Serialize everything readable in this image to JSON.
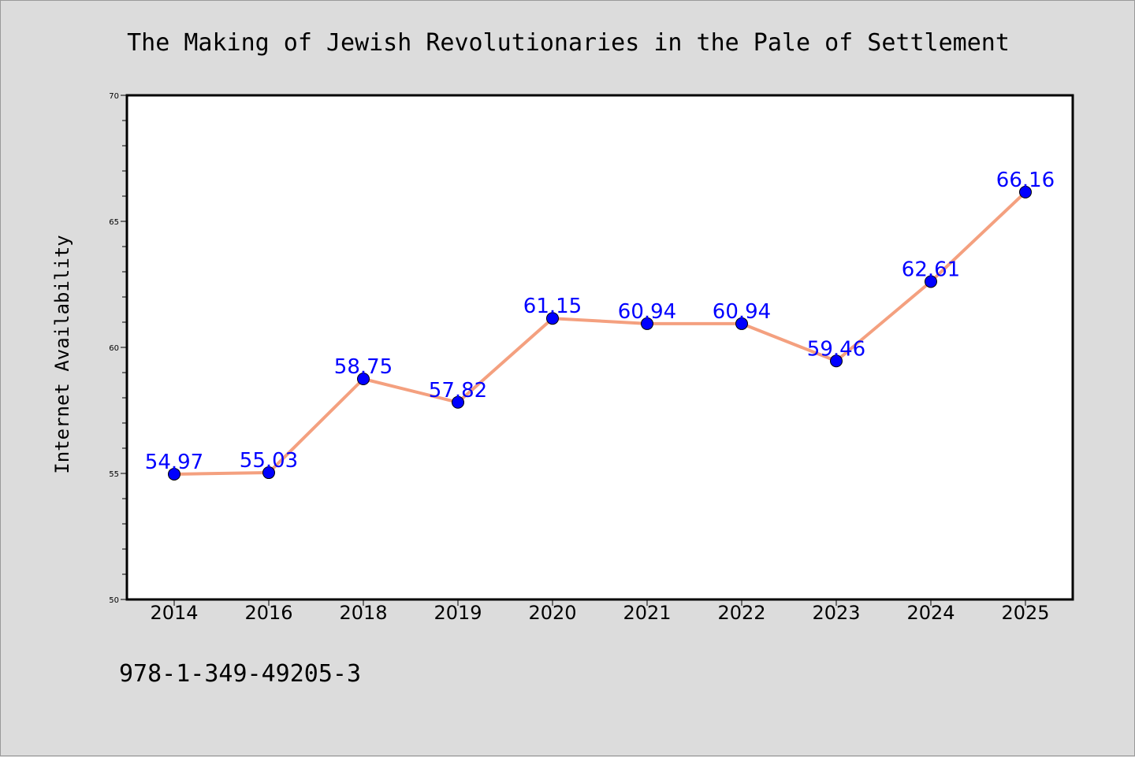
{
  "chart_data": {
    "type": "line",
    "title": "The Making of Jewish Revolutionaries in the Pale of Settlement",
    "xlabel": "",
    "ylabel": "Internet Availability",
    "categories": [
      "2014",
      "2016",
      "2018",
      "2019",
      "2020",
      "2021",
      "2022",
      "2023",
      "2024",
      "2025"
    ],
    "series": [
      {
        "values": [
          54.97,
          55.03,
          58.75,
          57.82,
          61.15,
          60.94,
          60.94,
          59.46,
          62.61,
          66.16
        ],
        "labels": [
          "54.97",
          "55.03",
          "58.75",
          "57.82",
          "61.15",
          "60.94",
          "60.94",
          "59.46",
          "62.61",
          "66.16"
        ],
        "line_color": "#f4a07f",
        "marker_color": "#0000ff"
      }
    ],
    "ylim": [
      50,
      70
    ],
    "yticks": [
      "50",
      "55",
      "60",
      "65",
      "70"
    ],
    "grid": false,
    "legend": "none"
  },
  "footer": {
    "isbn": "978-1-349-49205-3"
  },
  "colors": {
    "background": "#dcdcdc",
    "plot_area": "#ffffff",
    "data_label": "#0000ff"
  }
}
